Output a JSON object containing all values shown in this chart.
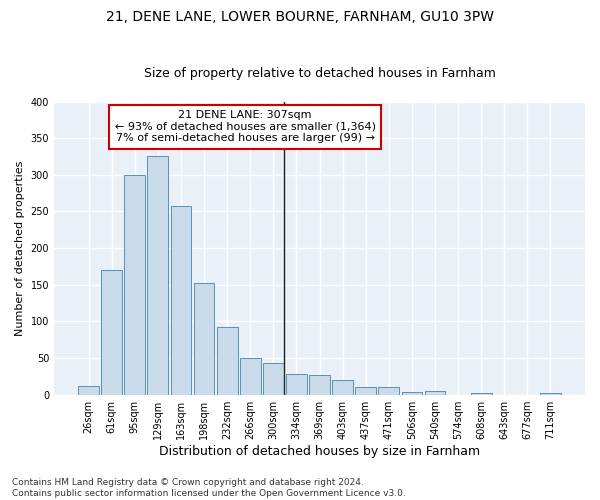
{
  "title1": "21, DENE LANE, LOWER BOURNE, FARNHAM, GU10 3PW",
  "title2": "Size of property relative to detached houses in Farnham",
  "xlabel": "Distribution of detached houses by size in Farnham",
  "ylabel": "Number of detached properties",
  "bar_color": "#c9daea",
  "bar_edge_color": "#5a8fb5",
  "categories": [
    "26sqm",
    "61sqm",
    "95sqm",
    "129sqm",
    "163sqm",
    "198sqm",
    "232sqm",
    "266sqm",
    "300sqm",
    "334sqm",
    "369sqm",
    "403sqm",
    "437sqm",
    "471sqm",
    "506sqm",
    "540sqm",
    "574sqm",
    "608sqm",
    "643sqm",
    "677sqm",
    "711sqm"
  ],
  "values": [
    12,
    170,
    300,
    325,
    258,
    153,
    92,
    50,
    43,
    28,
    27,
    20,
    11,
    10,
    4,
    5,
    0,
    2,
    0,
    0,
    3
  ],
  "vline_index": 8,
  "vline_color": "#222222",
  "annotation_line1": "21 DENE LANE: 307sqm",
  "annotation_line2": "← 93% of detached houses are smaller (1,364)",
  "annotation_line3": "7% of semi-detached houses are larger (99) →",
  "annotation_box_facecolor": "#ffffff",
  "annotation_box_edgecolor": "#cc0000",
  "ylim": [
    0,
    400
  ],
  "yticks": [
    0,
    50,
    100,
    150,
    200,
    250,
    300,
    350,
    400
  ],
  "footnote": "Contains HM Land Registry data © Crown copyright and database right 2024.\nContains public sector information licensed under the Open Government Licence v3.0.",
  "background_color": "#eaf0f8",
  "grid_color": "#ffffff",
  "title1_fontsize": 10,
  "title2_fontsize": 9,
  "xlabel_fontsize": 9,
  "ylabel_fontsize": 8,
  "tick_fontsize": 7,
  "annotation_fontsize": 8,
  "footnote_fontsize": 6.5
}
